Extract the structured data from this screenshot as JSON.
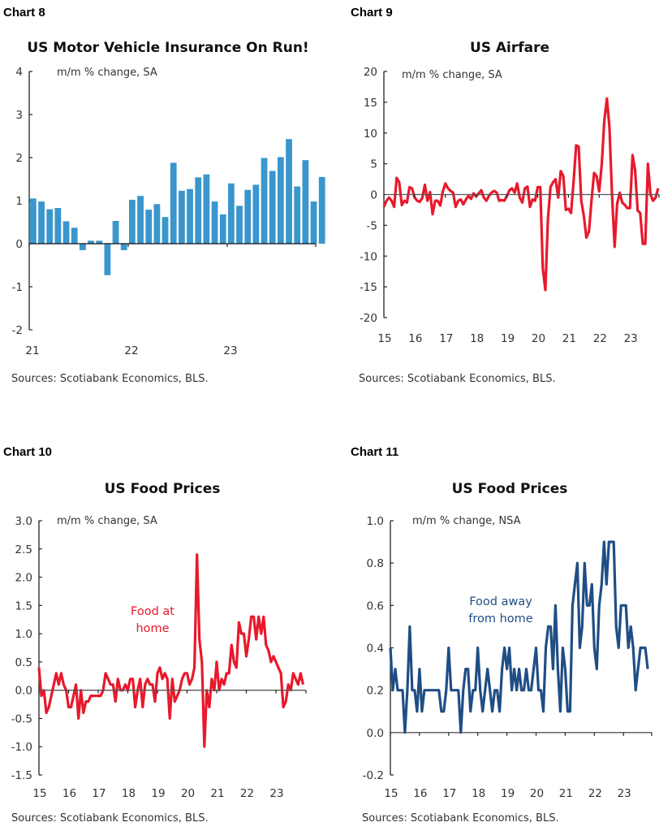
{
  "colors": {
    "bar": "#3a96cc",
    "airfare": "#e8192c",
    "food_home": "#e8192c",
    "food_away": "#1f4e85",
    "axis": "#222222"
  },
  "chart_data": [
    {
      "chart_no": "Chart 8",
      "type": "bar",
      "title": "US Motor Vehicle Insurance On Run!",
      "ylabel": "m/m % change, SA",
      "ylim": [
        -2,
        4
      ],
      "yticks": [
        "4",
        "3",
        "2",
        "1",
        "0",
        "-1",
        "-2"
      ],
      "xticks": [
        "21",
        "22",
        "23"
      ],
      "x_start": "2021-01",
      "frequency": "monthly",
      "values": [
        1.05,
        0.98,
        0.8,
        0.83,
        0.52,
        0.37,
        -0.15,
        0.07,
        0.07,
        -0.73,
        0.53,
        -0.15,
        1.02,
        1.11,
        0.79,
        0.92,
        0.62,
        1.88,
        1.23,
        1.27,
        1.54,
        1.61,
        0.98,
        0.68,
        1.4,
        0.88,
        1.25,
        1.37,
        1.99,
        1.69,
        2.01,
        2.43,
        1.33,
        1.94,
        0.98,
        1.55
      ],
      "source": "Sources: Scotiabank Economics, BLS."
    },
    {
      "chart_no": "Chart 9",
      "type": "line",
      "title": "US Airfare",
      "ylabel": "m/m % change, SA",
      "ylim": [
        -20,
        20
      ],
      "yticks": [
        "20",
        "15",
        "10",
        "5",
        "0",
        "-5",
        "-10",
        "-15",
        "-20"
      ],
      "xticks": [
        "15",
        "16",
        "17",
        "18",
        "19",
        "20",
        "21",
        "22",
        "23"
      ],
      "x_start": "2015-01",
      "frequency": "monthly",
      "values": [
        -2,
        -1,
        -0.5,
        -1,
        -2,
        2.7,
        2,
        -1.7,
        -1,
        -1.3,
        1.2,
        1,
        -0.5,
        -1,
        -1.2,
        -0.5,
        1.6,
        -1,
        0.4,
        -3.2,
        -1,
        -1,
        -1.8,
        0.5,
        1.8,
        1,
        0.6,
        0.3,
        -2,
        -1,
        -0.8,
        -1.6,
        -0.8,
        -0.2,
        -0.7,
        0.2,
        -0.3,
        0.2,
        0.7,
        -0.5,
        -1,
        -0.2,
        0.3,
        0.6,
        0.3,
        -1,
        -0.9,
        -1,
        -0.2,
        0.7,
        1,
        0.3,
        1.8,
        -0.5,
        -1.3,
        1,
        1.3,
        -2,
        -0.8,
        -1,
        1.2,
        1.2,
        -12,
        -15.5,
        -4,
        1.2,
        2,
        2.5,
        -0.5,
        3.8,
        3,
        -2.5,
        -2.3,
        -3,
        2,
        8,
        7.8,
        -1,
        -3.5,
        -7,
        -6,
        -1,
        3.5,
        3,
        0.5,
        5,
        12,
        15.6,
        11,
        0,
        -8.5,
        -1.5,
        0.3,
        -1.3,
        -1.7,
        -2.2,
        -2.2,
        6.4,
        4,
        -2.6,
        -3,
        -8,
        -8,
        5,
        0,
        -1,
        -0.5,
        1
      ],
      "source": "Sources: Scotiabank Economics, BLS."
    },
    {
      "chart_no": "Chart 10",
      "type": "line",
      "title": "US Food Prices",
      "ylabel": "m/m % change, SA",
      "ylim": [
        -1.5,
        3.0
      ],
      "yticks": [
        "3.0",
        "2.5",
        "2.0",
        "1.5",
        "1.0",
        "0.5",
        "0.0",
        "-0.5",
        "-1.0",
        "-1.5"
      ],
      "xticks": [
        "15",
        "16",
        "17",
        "18",
        "19",
        "20",
        "21",
        "22",
        "23"
      ],
      "x_start": "2015-01",
      "frequency": "monthly",
      "series": [
        {
          "name": "Food at home",
          "name_lines": [
            "Food at",
            "home"
          ],
          "values": [
            0.4,
            -0.1,
            0,
            -0.4,
            -0.3,
            -0.1,
            0.1,
            0.3,
            0.1,
            0.3,
            0.1,
            0,
            -0.3,
            -0.3,
            -0.1,
            0.1,
            -0.5,
            0,
            -0.4,
            -0.2,
            -0.2,
            -0.1,
            -0.1,
            -0.1,
            -0.1,
            -0.1,
            0,
            0.3,
            0.2,
            0.1,
            0.1,
            -0.2,
            0.2,
            0,
            0,
            0.1,
            0,
            0.2,
            0.2,
            -0.3,
            0,
            0.2,
            -0.3,
            0.1,
            0.2,
            0.1,
            0.1,
            -0.2,
            0.3,
            0.4,
            0.2,
            0.3,
            0.2,
            -0.5,
            0.2,
            -0.2,
            -0.1,
            0,
            0.2,
            0.3,
            0.3,
            0.1,
            0.2,
            0.4,
            2.4,
            0.9,
            0.5,
            -1,
            0,
            -0.3,
            0.2,
            0,
            0.5,
            0,
            0.2,
            0.1,
            0.3,
            0.3,
            0.8,
            0.5,
            0.4,
            1.2,
            1,
            1,
            0.6,
            0.9,
            1.3,
            1.3,
            0.9,
            1.3,
            1,
            1.3,
            0.8,
            0.7,
            0.5,
            0.6,
            0.5,
            0.4,
            0.3,
            -0.3,
            -0.2,
            0.1,
            0,
            0.3,
            0.2,
            0.1,
            0.3,
            0.1
          ]
        }
      ],
      "source": "Sources: Scotiabank Economics, BLS."
    },
    {
      "chart_no": "Chart 11",
      "type": "line",
      "title": "US Food Prices",
      "ylabel": "m/m % change, NSA",
      "ylim": [
        -0.2,
        1.0
      ],
      "yticks": [
        "1.0",
        "0.8",
        "0.6",
        "0.4",
        "0.2",
        "0.0",
        "-0.2"
      ],
      "xticks": [
        "15",
        "16",
        "17",
        "18",
        "19",
        "20",
        "21",
        "22",
        "23"
      ],
      "x_start": "2015-01",
      "frequency": "monthly",
      "series": [
        {
          "name": "Food away from home",
          "name_lines": [
            "Food away",
            "from home"
          ],
          "values": [
            0.4,
            0.2,
            0.3,
            0.2,
            0.2,
            0.2,
            0,
            0.2,
            0.5,
            0.2,
            0.2,
            0.1,
            0.3,
            0.1,
            0.2,
            0.2,
            0.2,
            0.2,
            0.2,
            0.2,
            0.2,
            0.1,
            0.1,
            0.2,
            0.4,
            0.2,
            0.2,
            0.2,
            0.2,
            0,
            0.2,
            0.3,
            0.3,
            0.1,
            0.2,
            0.2,
            0.4,
            0.2,
            0.1,
            0.2,
            0.3,
            0.2,
            0.1,
            0.2,
            0.2,
            0.1,
            0.3,
            0.4,
            0.3,
            0.4,
            0.2,
            0.3,
            0.2,
            0.3,
            0.2,
            0.2,
            0.3,
            0.2,
            0.2,
            0.3,
            0.4,
            0.2,
            0.2,
            0.1,
            0.4,
            0.5,
            0.5,
            0.3,
            0.6,
            0.3,
            0.1,
            0.4,
            0.3,
            0.1,
            0.1,
            0.6,
            0.7,
            0.8,
            0.4,
            0.5,
            0.8,
            0.6,
            0.6,
            0.7,
            0.4,
            0.3,
            0.6,
            0.7,
            0.9,
            0.7,
            0.9,
            0.9,
            0.9,
            0.5,
            0.4,
            0.6,
            0.6,
            0.6,
            0.4,
            0.5,
            0.4,
            0.2,
            0.3,
            0.4,
            0.4,
            0.4,
            0.3
          ]
        }
      ],
      "source": "Sources: Scotiabank Economics, BLS."
    }
  ]
}
